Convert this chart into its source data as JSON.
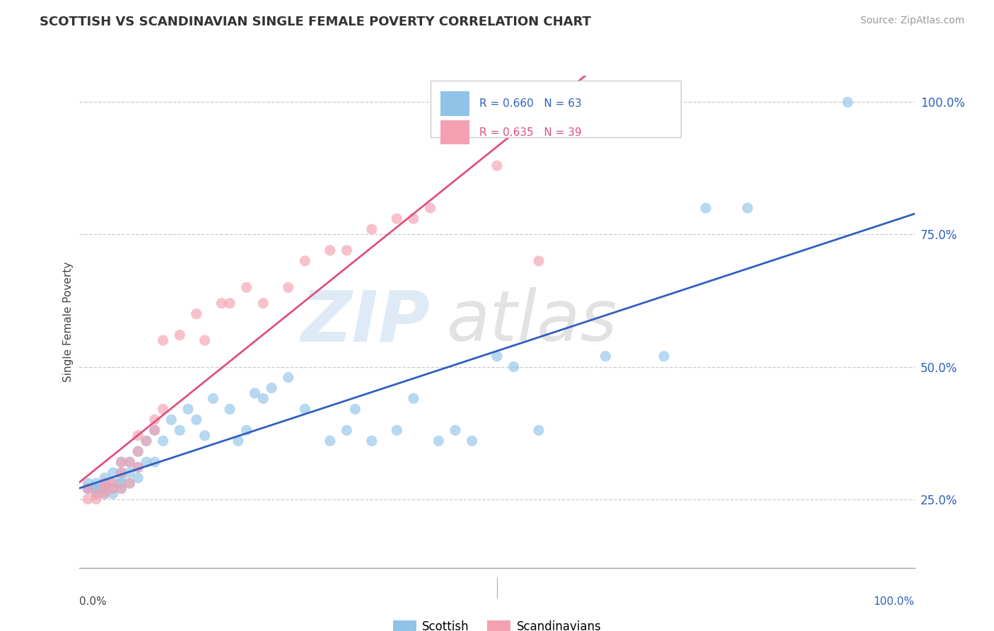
{
  "title": "SCOTTISH VS SCANDINAVIAN SINGLE FEMALE POVERTY CORRELATION CHART",
  "source": "Source: ZipAtlas.com",
  "ylabel": "Single Female Poverty",
  "r_scottish": "R = 0.660",
  "n_scottish": "N = 63",
  "r_scandinavian": "R = 0.635",
  "n_scandinavian": "N = 39",
  "color_scottish": "#8fc3e8",
  "color_scandinavian": "#f4a0b0",
  "color_scottish_line": "#3060c0",
  "color_scandinavian_line": "#e05080",
  "scottish_x": [
    0.01,
    0.01,
    0.01,
    0.02,
    0.02,
    0.02,
    0.02,
    0.03,
    0.03,
    0.03,
    0.03,
    0.03,
    0.04,
    0.04,
    0.04,
    0.04,
    0.05,
    0.05,
    0.05,
    0.05,
    0.05,
    0.06,
    0.06,
    0.06,
    0.07,
    0.07,
    0.07,
    0.08,
    0.08,
    0.09,
    0.09,
    0.1,
    0.11,
    0.12,
    0.13,
    0.14,
    0.15,
    0.16,
    0.18,
    0.19,
    0.2,
    0.21,
    0.22,
    0.23,
    0.25,
    0.27,
    0.3,
    0.32,
    0.33,
    0.35,
    0.38,
    0.4,
    0.43,
    0.45,
    0.47,
    0.5,
    0.52,
    0.55,
    0.63,
    0.7,
    0.75,
    0.8,
    0.92
  ],
  "scottish_y": [
    0.27,
    0.27,
    0.28,
    0.26,
    0.27,
    0.27,
    0.28,
    0.26,
    0.27,
    0.27,
    0.28,
    0.29,
    0.26,
    0.27,
    0.28,
    0.3,
    0.27,
    0.28,
    0.29,
    0.3,
    0.32,
    0.28,
    0.3,
    0.32,
    0.29,
    0.31,
    0.34,
    0.32,
    0.36,
    0.32,
    0.38,
    0.36,
    0.4,
    0.38,
    0.42,
    0.4,
    0.37,
    0.44,
    0.42,
    0.36,
    0.38,
    0.45,
    0.44,
    0.46,
    0.48,
    0.42,
    0.36,
    0.38,
    0.42,
    0.36,
    0.38,
    0.44,
    0.36,
    0.38,
    0.36,
    0.52,
    0.5,
    0.38,
    0.52,
    0.52,
    0.8,
    0.8,
    1.0
  ],
  "scandinavian_x": [
    0.01,
    0.01,
    0.02,
    0.02,
    0.03,
    0.03,
    0.03,
    0.04,
    0.04,
    0.05,
    0.05,
    0.05,
    0.06,
    0.06,
    0.07,
    0.07,
    0.07,
    0.08,
    0.09,
    0.09,
    0.1,
    0.1,
    0.12,
    0.14,
    0.15,
    0.17,
    0.18,
    0.2,
    0.22,
    0.25,
    0.27,
    0.3,
    0.32,
    0.35,
    0.38,
    0.4,
    0.42,
    0.5,
    0.55
  ],
  "scandinavian_y": [
    0.25,
    0.27,
    0.26,
    0.25,
    0.26,
    0.27,
    0.28,
    0.27,
    0.28,
    0.27,
    0.3,
    0.32,
    0.28,
    0.32,
    0.31,
    0.34,
    0.37,
    0.36,
    0.38,
    0.4,
    0.42,
    0.55,
    0.56,
    0.6,
    0.55,
    0.62,
    0.62,
    0.65,
    0.62,
    0.65,
    0.7,
    0.72,
    0.72,
    0.76,
    0.78,
    0.78,
    0.8,
    0.88,
    0.7
  ],
  "xlim": [
    0.0,
    1.0
  ],
  "ylim": [
    0.12,
    1.05
  ],
  "ytick_positions": [
    0.25,
    0.5,
    0.75,
    1.0
  ],
  "ytick_labels": [
    "25.0%",
    "50.0%",
    "75.0%",
    "100.0%"
  ]
}
